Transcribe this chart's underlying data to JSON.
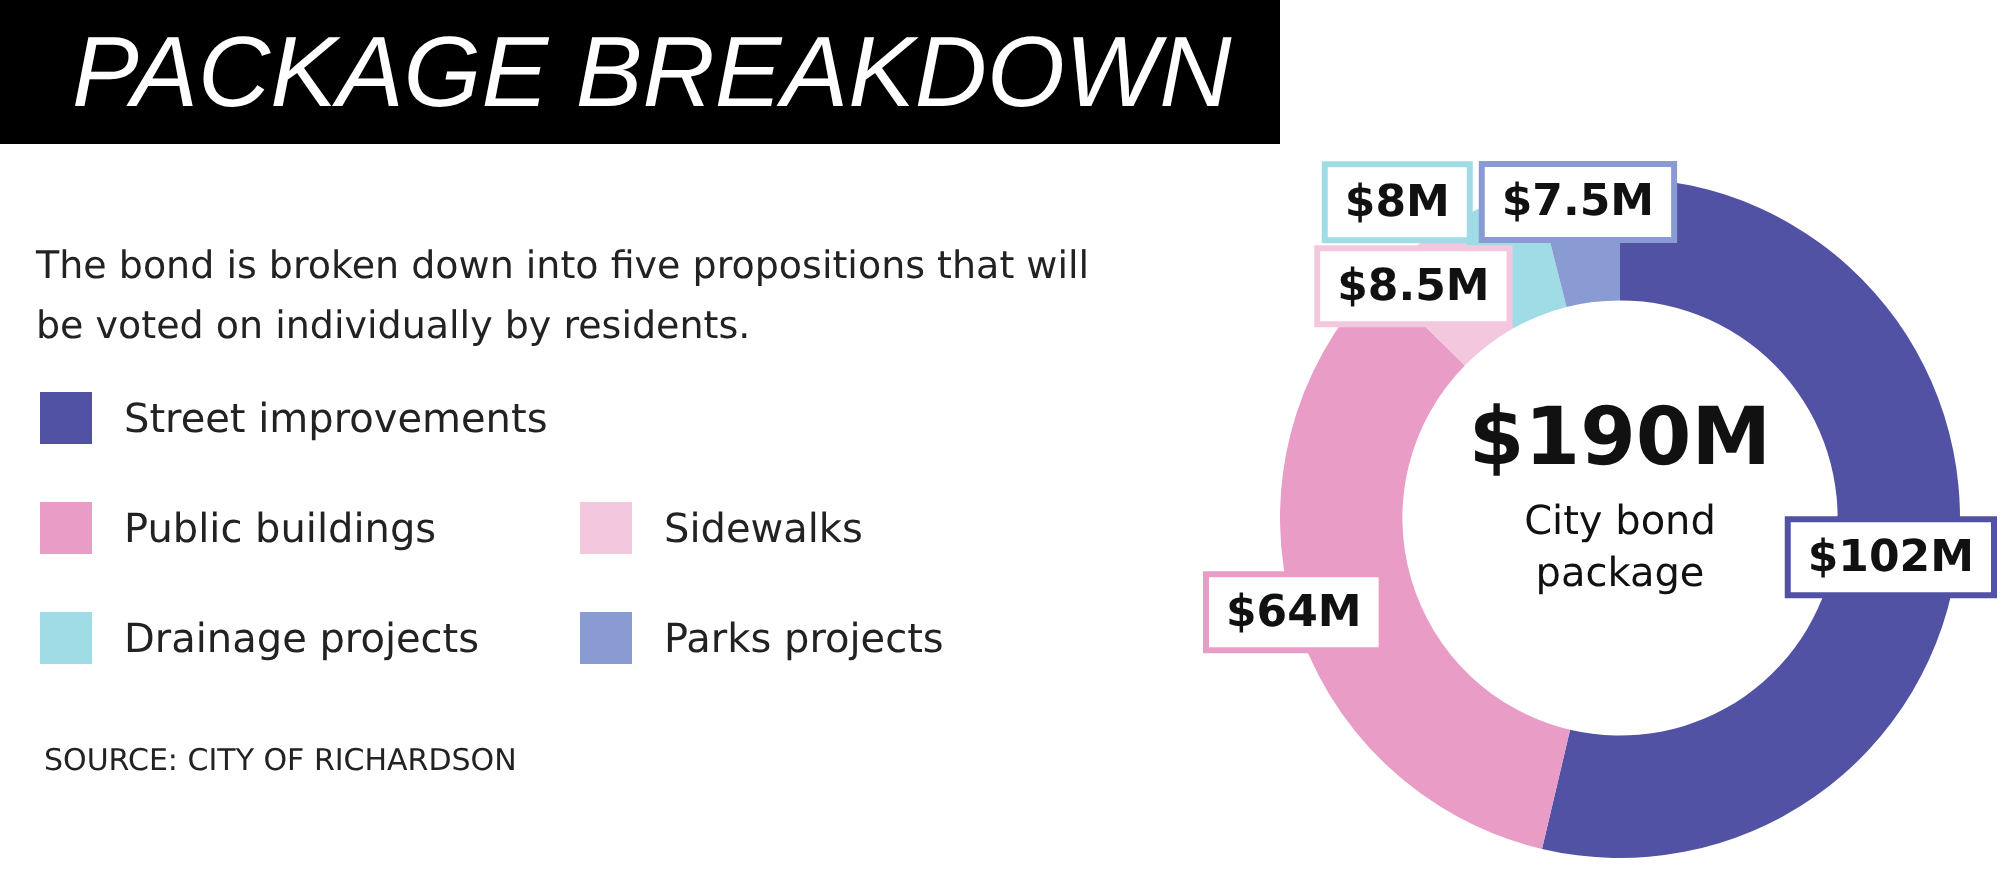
{
  "chart_data": {
    "type": "donut",
    "title": "PACKAGE BREAKDOWN",
    "subtitle": "The bond is broken down into five propositions that will be voted on individually by residents.",
    "categories": [
      "Street improvements",
      "Public buildings",
      "Sidewalks",
      "Drainage projects",
      "Parks projects"
    ],
    "values": [
      102,
      64,
      8.5,
      8,
      7.5
    ],
    "colors": [
      "#5252a4",
      "#e89cc6",
      "#f3c8de",
      "#9fdce5",
      "#8a9bd3"
    ],
    "value_labels": [
      "$102M",
      "$64M",
      "$8.5M",
      "$8M",
      "$7.5M"
    ],
    "legend": "left",
    "annotations": [
      "$190M",
      "City bond package",
      "SOURCE: CITY OF RICHARDSON"
    ]
  }
}
